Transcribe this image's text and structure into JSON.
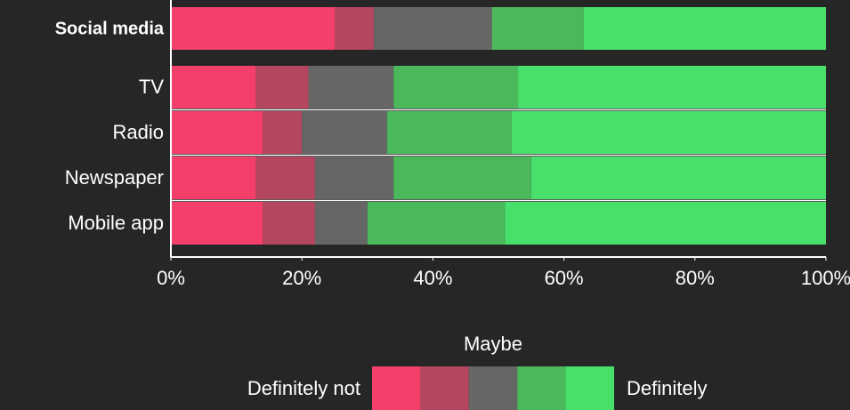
{
  "chart_data": {
    "type": "stacked-bar-horizontal",
    "categories": [
      "Social media",
      "TV",
      "Radio",
      "Newspaper",
      "Mobile app"
    ],
    "bold": [
      true,
      false,
      false,
      false,
      false
    ],
    "series": [
      {
        "color": "#f43f6b",
        "values": [
          25,
          13,
          14,
          13,
          14
        ]
      },
      {
        "color": "#b5465f",
        "values": [
          6,
          8,
          6,
          9,
          8
        ]
      },
      {
        "color": "#666666",
        "values": [
          18,
          13,
          13,
          12,
          8
        ]
      },
      {
        "color": "#4cb85c",
        "values": [
          14,
          19,
          19,
          21,
          21
        ]
      },
      {
        "color": "#48e06a",
        "values": [
          37,
          47,
          48,
          45,
          49
        ]
      }
    ],
    "xlim": [
      0,
      100
    ],
    "xticks": [
      {
        "value": 0,
        "label": "0%"
      },
      {
        "value": 20,
        "label": "20%"
      },
      {
        "value": 40,
        "label": "40%"
      },
      {
        "value": 60,
        "label": "60%"
      },
      {
        "value": 80,
        "label": "80%"
      },
      {
        "value": 100,
        "label": "100%"
      }
    ],
    "legend": {
      "low_label": "Definitely not",
      "mid_label": "Maybe",
      "high_label": "Definitely"
    }
  }
}
